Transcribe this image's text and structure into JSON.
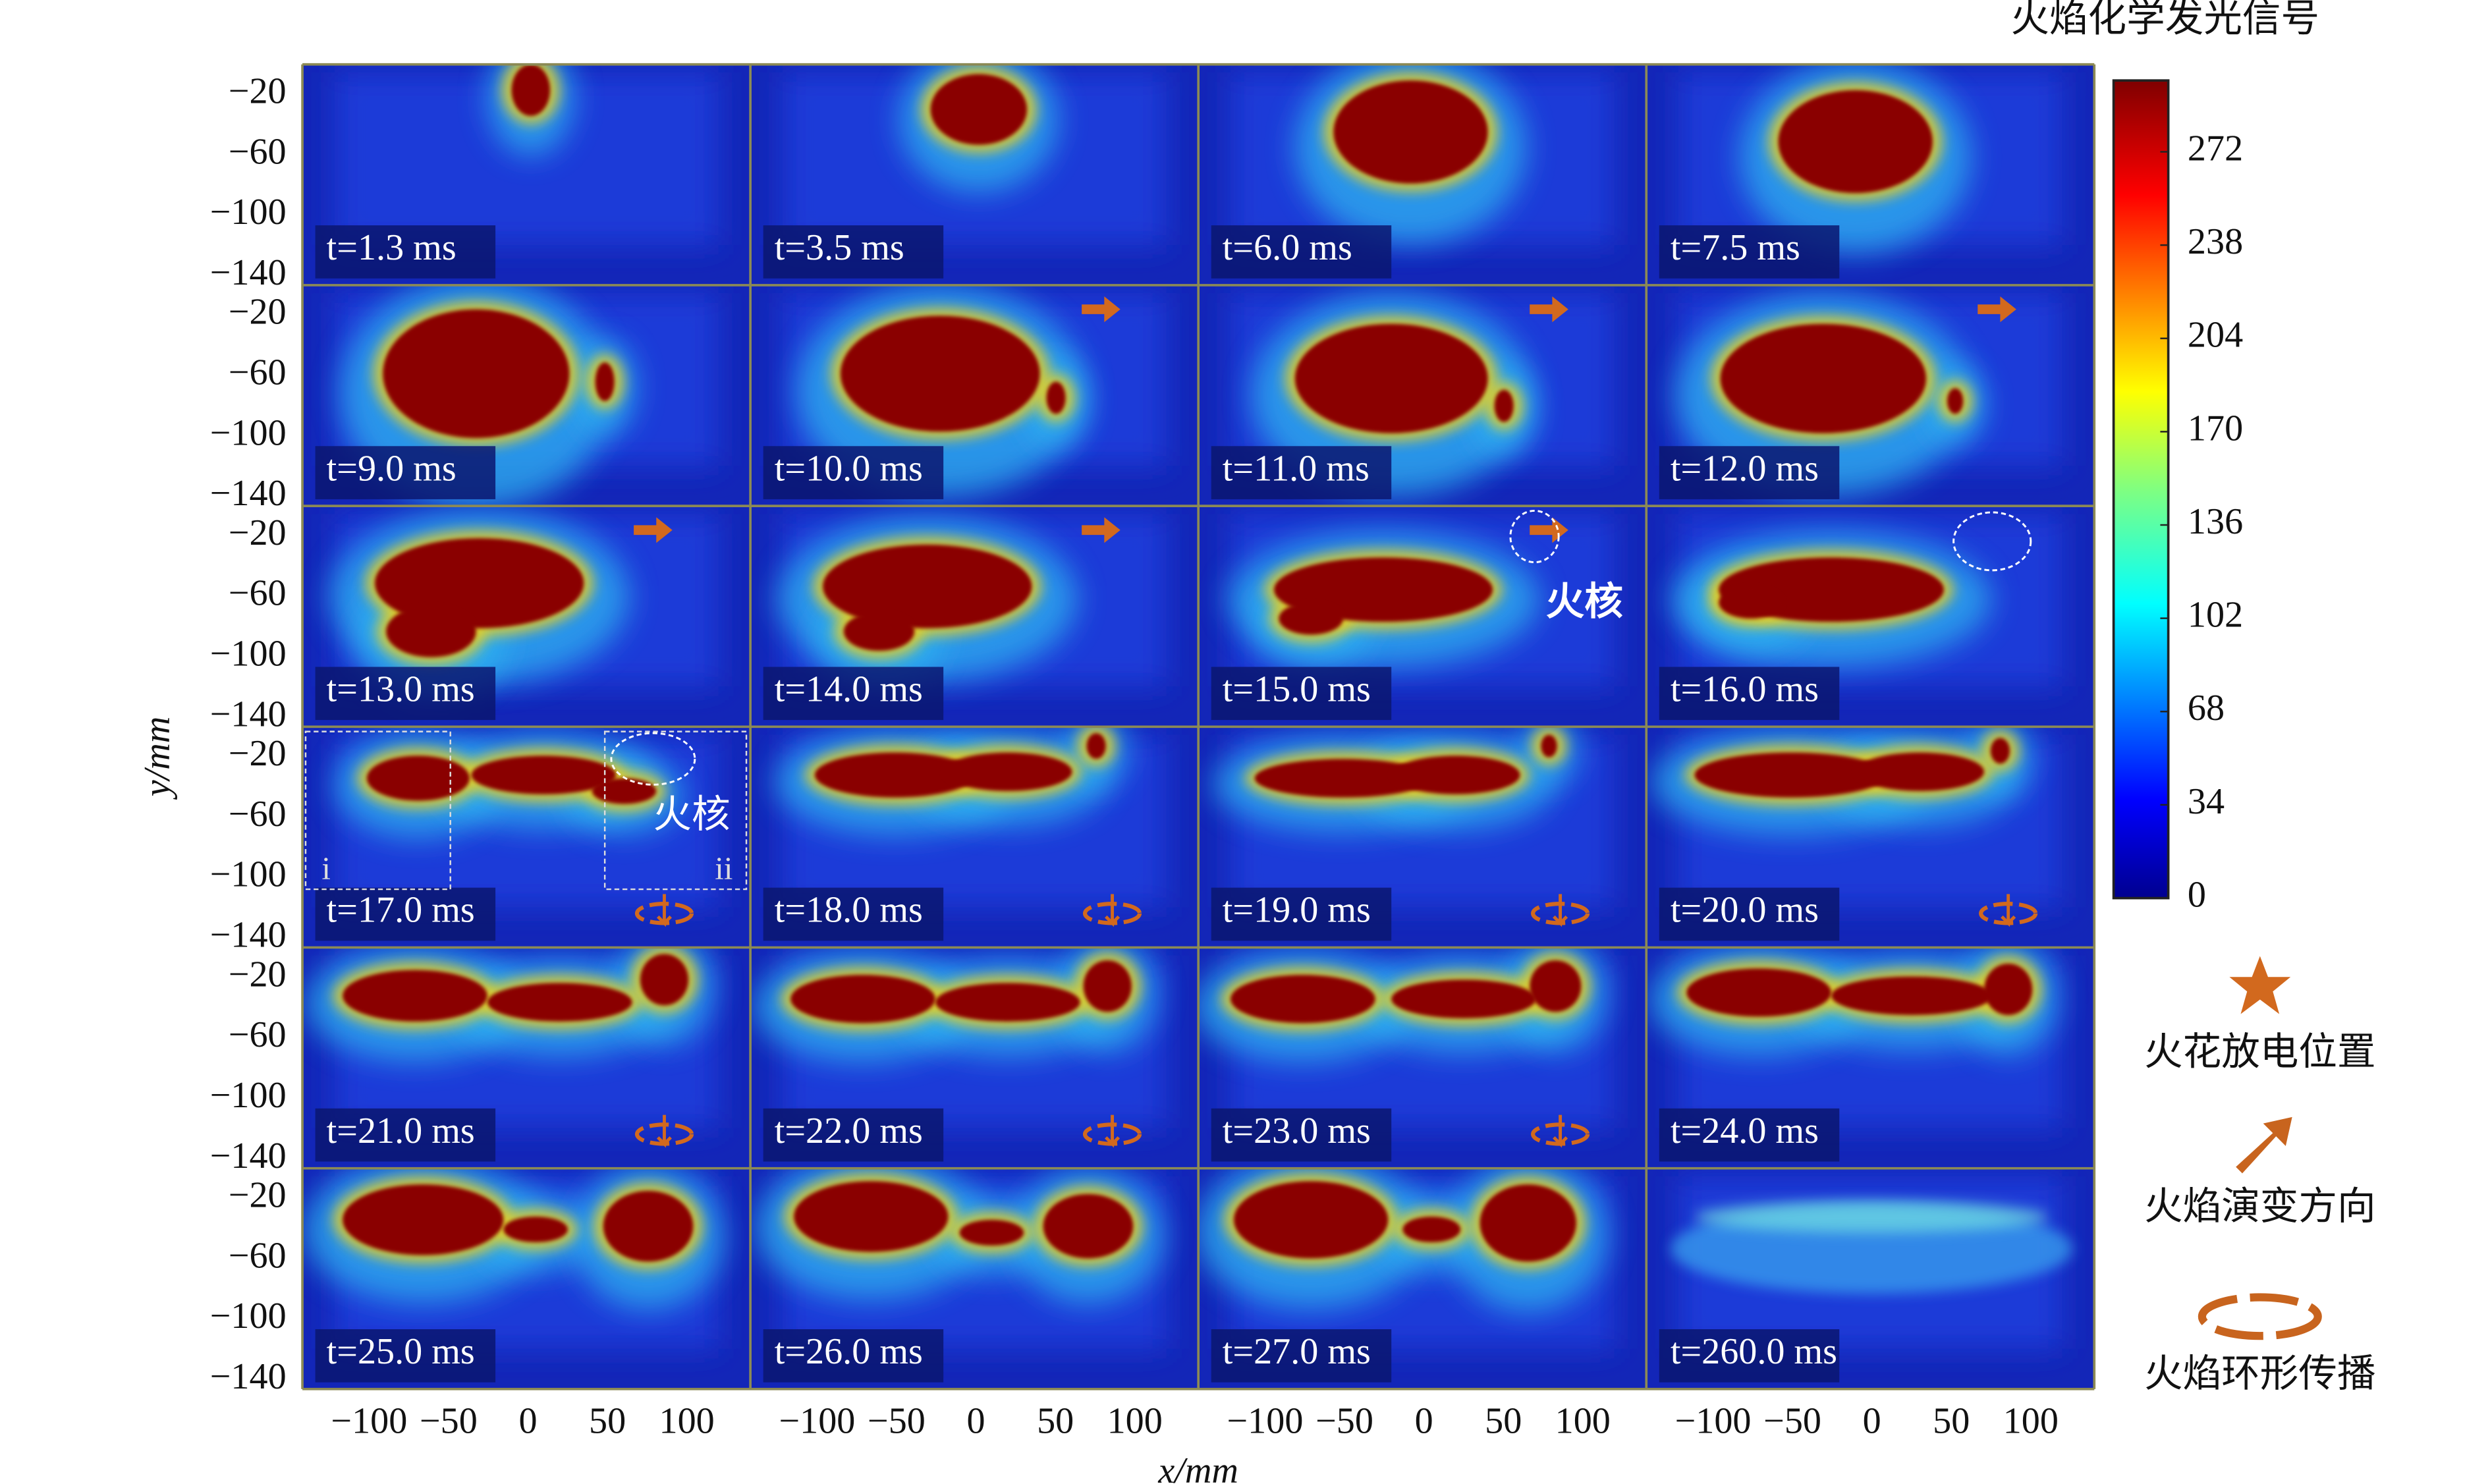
{
  "title": "火焰化学发光信号",
  "axes": {
    "x_label": "x/mm",
    "y_label": "y/mm",
    "xlim": [
      -142,
      140
    ],
    "ylim": [
      -146,
      0
    ],
    "xticks": [
      {
        "value": -100,
        "label": "−100"
      },
      {
        "value": -50,
        "label": "−50"
      },
      0,
      50,
      100
    ],
    "yticks": [
      {
        "value": -20,
        "label": "−20"
      },
      {
        "value": -60,
        "label": "−60"
      },
      {
        "value": -100,
        "label": "−100"
      },
      {
        "value": -140,
        "label": "−140"
      }
    ]
  },
  "panels": [
    {
      "time": "t=1.3 ms"
    },
    {
      "time": "t=3.5 ms"
    },
    {
      "time": "t=6.0 ms"
    },
    {
      "time": "t=7.5 ms"
    },
    {
      "time": "t=9.0 ms"
    },
    {
      "time": "t=10.0 ms"
    },
    {
      "time": "t=11.0 ms"
    },
    {
      "time": "t=12.0 ms"
    },
    {
      "time": "t=13.0 ms"
    },
    {
      "time": "t=14.0 ms"
    },
    {
      "time": "t=15.0 ms"
    },
    {
      "time": "t=16.0 ms"
    },
    {
      "time": "t=17.0 ms"
    },
    {
      "time": "t=18.0 ms"
    },
    {
      "time": "t=19.0 ms"
    },
    {
      "time": "t=20.0 ms"
    },
    {
      "time": "t=21.0 ms"
    },
    {
      "time": "t=22.0 ms"
    },
    {
      "time": "t=23.0 ms"
    },
    {
      "time": "t=24.0 ms"
    },
    {
      "time": "t=25.0 ms"
    },
    {
      "time": "t=26.0  ms"
    },
    {
      "time": "t=27.0 ms"
    },
    {
      "time": "t=260.0 ms"
    }
  ],
  "annotations": {
    "core_label_1": "火核",
    "core_label_2": "火核",
    "region_i": "i",
    "region_ii": "ii"
  },
  "colorbar": {
    "lim": [
      0,
      298
    ],
    "ticks": [
      0,
      34,
      68,
      102,
      136,
      170,
      204,
      238,
      272
    ]
  },
  "legend": {
    "spark": "火花放电位置",
    "direction": "火焰演变方向",
    "ring": "火焰环形传播"
  }
}
